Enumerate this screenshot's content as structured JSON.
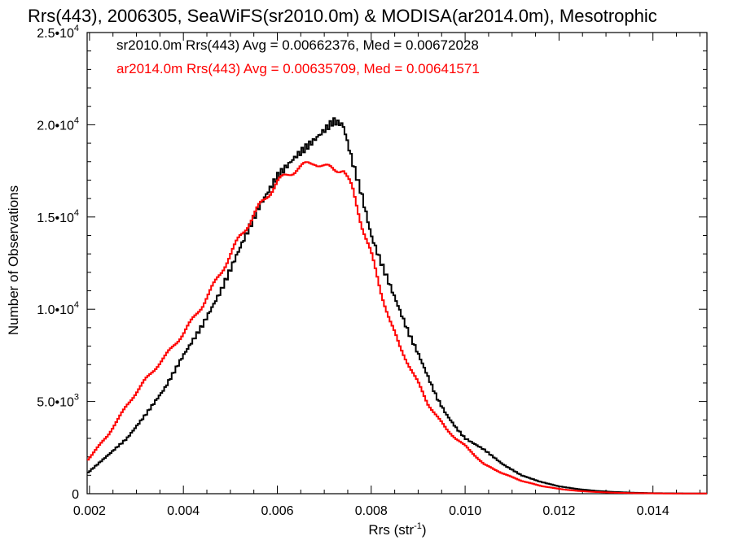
{
  "chart_data": {
    "type": "line",
    "title": "Rrs(443), 2006305, SeaWiFS(sr2010.0m) & MODISA(ar2014.0m), Mesotrophic",
    "xlabel": "Rrs (str",
    "xlabel_sup": "-1",
    "xlabel_end": ")",
    "ylabel": "Number of Observations",
    "xlim": [
      0.00195,
      0.01515
    ],
    "ylim": [
      0,
      25000
    ],
    "x_ticks": [
      {
        "value": 0.002,
        "label": "0.002"
      },
      {
        "value": 0.004,
        "label": "0.004"
      },
      {
        "value": 0.006,
        "label": "0.006"
      },
      {
        "value": 0.008,
        "label": "0.008"
      },
      {
        "value": 0.01,
        "label": "0.010"
      },
      {
        "value": 0.012,
        "label": "0.012"
      },
      {
        "value": 0.014,
        "label": "0.014"
      }
    ],
    "y_ticks": [
      {
        "value": 0,
        "label": "0",
        "exp": ""
      },
      {
        "value": 5000,
        "label": "5.0•10",
        "exp": "3"
      },
      {
        "value": 10000,
        "label": "1.0•10",
        "exp": "4"
      },
      {
        "value": 15000,
        "label": "1.5•10",
        "exp": "4"
      },
      {
        "value": 20000,
        "label": "2.0•10",
        "exp": "4"
      },
      {
        "value": 25000,
        "label": "2.5•10",
        "exp": "4"
      }
    ],
    "legend_placement": "top-left",
    "grid": false,
    "series": [
      {
        "name": "sr2010.0m Rrs(443) Avg = 0.00662376, Med = 0.00672028",
        "color": "#000000",
        "x": [
          0.00195,
          0.0024,
          0.0028,
          0.0032,
          0.0036,
          0.004,
          0.0044,
          0.0048,
          0.0052,
          0.0056,
          0.006,
          0.0064,
          0.0068,
          0.0072,
          0.0074,
          0.0076,
          0.0078,
          0.008,
          0.0082,
          0.0084,
          0.0086,
          0.0088,
          0.009,
          0.0092,
          0.0094,
          0.0096,
          0.0098,
          0.01,
          0.0104,
          0.0108,
          0.0112,
          0.0116,
          0.012,
          0.0124,
          0.0128,
          0.0132,
          0.0136,
          0.014,
          0.0144,
          0.0148,
          0.0151
        ],
        "y": [
          1100,
          2100,
          3000,
          4300,
          5700,
          7500,
          9100,
          11000,
          13300,
          15500,
          17200,
          18300,
          19200,
          20200,
          20000,
          18000,
          16200,
          14000,
          12600,
          11300,
          10000,
          8700,
          7600,
          6400,
          5200,
          4300,
          3600,
          3000,
          2400,
          1600,
          1000,
          650,
          400,
          250,
          150,
          90,
          50,
          30,
          20,
          10,
          10
        ]
      },
      {
        "name": "ar2014.0m Rrs(443) Avg = 0.00635709, Med = 0.00641571",
        "color": "#ff0000",
        "x": [
          0.00195,
          0.0024,
          0.0028,
          0.0032,
          0.0036,
          0.004,
          0.0044,
          0.0048,
          0.0052,
          0.0056,
          0.006,
          0.0064,
          0.0068,
          0.007,
          0.0072,
          0.0074,
          0.0076,
          0.0078,
          0.008,
          0.0082,
          0.0084,
          0.0086,
          0.0088,
          0.009,
          0.0092,
          0.0094,
          0.0096,
          0.0098,
          0.01,
          0.0104,
          0.0108,
          0.0112,
          0.0116,
          0.012,
          0.0124,
          0.0128,
          0.0132,
          0.0136,
          0.014,
          0.0144,
          0.0148,
          0.0151
        ],
        "y": [
          1800,
          3200,
          4800,
          6200,
          7400,
          8700,
          10200,
          12000,
          13900,
          15500,
          16900,
          17600,
          18000,
          17700,
          17600,
          17600,
          16500,
          14600,
          13000,
          11000,
          9400,
          8000,
          7000,
          6000,
          4900,
          4200,
          3500,
          3000,
          2600,
          1600,
          1100,
          700,
          430,
          260,
          150,
          90,
          50,
          30,
          20,
          10,
          10,
          10
        ]
      }
    ]
  }
}
